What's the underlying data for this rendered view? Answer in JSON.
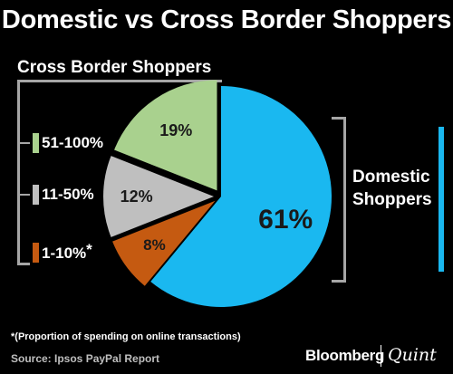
{
  "title": "Domestic vs Cross Border Shoppers",
  "cross_border_label": "Cross Border Shoppers",
  "domestic_label": [
    "Domestic",
    "Shoppers"
  ],
  "footnote": "*(Proportion of spending on online transactions)",
  "source": "Source: Ipsos PayPal Report",
  "brand": {
    "left": "Bloomberg",
    "right": "Quint"
  },
  "legend": [
    {
      "label": "51-100%",
      "color": "#a9d18e"
    },
    {
      "label": "11-50%",
      "color": "#bfbfbf"
    },
    {
      "label": "1-10%",
      "color": "#c55a11",
      "suffix": "*"
    }
  ],
  "colors": {
    "domestic": "#1ab8f0",
    "bracket": "#a6a6a6"
  },
  "chart_data": {
    "type": "pie",
    "title": "Domestic vs Cross Border Shoppers",
    "slices": [
      {
        "label": "Domestic Shoppers",
        "value": 61,
        "display": "61%",
        "color": "#1ab8f0",
        "exploded": false
      },
      {
        "label": "1-10%",
        "value": 8,
        "display": "8%",
        "color": "#c55a11",
        "exploded": true
      },
      {
        "label": "11-50%",
        "value": 12,
        "display": "12%",
        "color": "#bfbfbf",
        "exploded": true
      },
      {
        "label": "51-100%",
        "value": 19,
        "display": "19%",
        "color": "#a9d18e",
        "exploded": true
      }
    ]
  }
}
